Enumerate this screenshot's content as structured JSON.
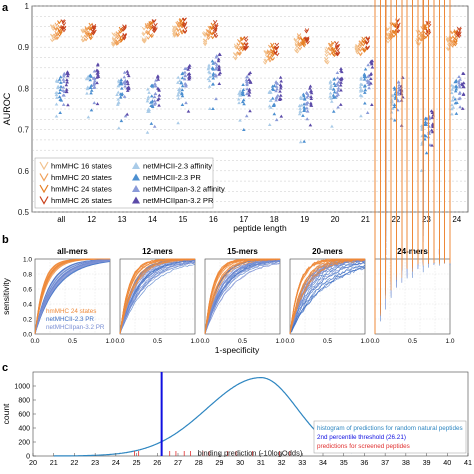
{
  "panel_letters": [
    "a",
    "b",
    "c"
  ],
  "colors": {
    "hm16": "#f2c28e",
    "hm20": "#f0a059",
    "hm24": "#e67e22",
    "hm26": "#c8411b",
    "net23aff": "#a9cbe8",
    "net23pr": "#4c8fd0",
    "netpan_aff": "#8a9ad8",
    "netpan_pr": "#5b4aa8",
    "curve_hm": "#ee8a3a",
    "curve_net23": "#3d6fc4",
    "curve_netpan": "#7a8fd4",
    "hist": "#2e86c1",
    "threshold": "#1010e0",
    "screened": "#e03030"
  },
  "chart_data": [
    {
      "type": "scatter",
      "panel": "a",
      "xlabel": "peptide length",
      "ylabel": "AUROC",
      "categories": [
        "all",
        "12",
        "13",
        "14",
        "15",
        "16",
        "17",
        "18",
        "19",
        "20",
        "21",
        "22",
        "23",
        "24"
      ],
      "ylim": [
        0.5,
        1.0
      ],
      "yticks": [
        "0.5",
        "0.6",
        "0.7",
        "0.8",
        "0.9",
        "1"
      ],
      "grid": true,
      "legend_position": "bottom-left",
      "series": [
        {
          "name": "hmMHC 16 states",
          "color_key": "hm16",
          "marker": "vee",
          "centers": [
            0.935,
            0.925,
            0.915,
            0.93,
            0.935,
            0.925,
            0.89,
            0.875,
            0.905,
            0.88,
            0.89,
            0.93,
            0.925,
            0.91
          ],
          "spread": 0.03
        },
        {
          "name": "hmMHC 20 states",
          "color_key": "hm20",
          "marker": "vee",
          "centers": [
            0.94,
            0.935,
            0.925,
            0.94,
            0.945,
            0.935,
            0.9,
            0.885,
            0.915,
            0.89,
            0.9,
            0.94,
            0.935,
            0.92
          ],
          "spread": 0.03
        },
        {
          "name": "hmMHC 24 states",
          "color_key": "hm24",
          "marker": "vee",
          "centers": [
            0.945,
            0.94,
            0.93,
            0.945,
            0.95,
            0.94,
            0.905,
            0.89,
            0.92,
            0.895,
            0.905,
            0.945,
            0.94,
            0.925
          ],
          "spread": 0.03
        },
        {
          "name": "hmMHC 26 states",
          "color_key": "hm26",
          "marker": "vee",
          "centers": [
            0.95,
            0.945,
            0.935,
            0.95,
            0.955,
            0.945,
            0.91,
            0.895,
            0.925,
            0.9,
            0.91,
            0.95,
            0.945,
            0.93
          ],
          "spread": 0.03
        },
        {
          "name": "netMHCII-2.3 affinity",
          "color_key": "net23aff",
          "marker": "tri",
          "centers": [
            0.79,
            0.8,
            0.79,
            0.77,
            0.8,
            0.83,
            0.78,
            0.77,
            0.75,
            0.79,
            0.81,
            0.77,
            0.69,
            0.78
          ],
          "spread": 0.05
        },
        {
          "name": "netMHCII-2.3 PR",
          "color_key": "net23pr",
          "marker": "tri",
          "centers": [
            0.8,
            0.81,
            0.8,
            0.78,
            0.81,
            0.84,
            0.79,
            0.78,
            0.76,
            0.8,
            0.82,
            0.78,
            0.7,
            0.79
          ],
          "spread": 0.05
        },
        {
          "name": "netMHCIIpan-3.2 affinity",
          "color_key": "netpan_aff",
          "marker": "tri",
          "centers": [
            0.81,
            0.82,
            0.81,
            0.79,
            0.82,
            0.85,
            0.8,
            0.79,
            0.77,
            0.81,
            0.83,
            0.79,
            0.71,
            0.8
          ],
          "spread": 0.05
        },
        {
          "name": "netMHCIIpan-3.2 PR",
          "color_key": "netpan_pr",
          "marker": "tri",
          "centers": [
            0.82,
            0.83,
            0.82,
            0.8,
            0.83,
            0.86,
            0.81,
            0.8,
            0.78,
            0.82,
            0.84,
            0.8,
            0.72,
            0.81
          ],
          "spread": 0.05
        }
      ]
    },
    {
      "type": "line",
      "panel": "b",
      "xlabel": "1-specificity",
      "ylabel": "sensitivity",
      "xticks": [
        "0.0",
        "0.5",
        "1.0"
      ],
      "yticks": [
        "0.0",
        "0.2",
        "0.4",
        "0.6",
        "0.8",
        "1.0"
      ],
      "xlim": [
        0,
        1
      ],
      "ylim": [
        0,
        1
      ],
      "subplots": [
        {
          "title": "all-mers",
          "k_hm": [
            6.5,
            9.5
          ],
          "k_net": [
            3.2,
            5.5
          ],
          "noise": 0
        },
        {
          "title": "12-mers",
          "k_hm": [
            4.5,
            9
          ],
          "k_net": [
            2.5,
            6
          ],
          "noise": 0.02
        },
        {
          "title": "15-mers",
          "k_hm": [
            5,
            10
          ],
          "k_net": [
            2.5,
            6
          ],
          "noise": 0.02
        },
        {
          "title": "20-mers",
          "k_hm": [
            4,
            9
          ],
          "k_net": [
            2,
            5.5
          ],
          "noise": 0.04
        },
        {
          "title": "24-mers",
          "k_hm": [
            4,
            12
          ],
          "k_net": [
            3,
            10
          ],
          "noise": 0.12
        }
      ],
      "legend": [
        {
          "name": "hmMHC 24 states",
          "color_key": "curve_hm"
        },
        {
          "name": "netMHCII-2.3 PR",
          "color_key": "curve_net23"
        },
        {
          "name": "netMHCIIpan-3.2 PR",
          "color_key": "curve_netpan"
        }
      ]
    },
    {
      "type": "area",
      "panel": "c",
      "xlabel": "binding prediction (-10logOdds)",
      "ylabel": "count",
      "xlim": [
        20,
        41
      ],
      "xticks": [
        "20",
        "21",
        "22",
        "23",
        "24",
        "25",
        "26",
        "27",
        "28",
        "29",
        "30",
        "31",
        "32",
        "33",
        "34",
        "35",
        "36",
        "37",
        "38",
        "39",
        "40",
        "41"
      ],
      "ylim": [
        0,
        1200
      ],
      "yticks": [
        "0",
        "200",
        "400",
        "600",
        "800",
        "1000"
      ],
      "histogram": {
        "peak_x": 31.0,
        "peak_count": 1120,
        "sd_left": 2.6,
        "sd_right": 1.75,
        "start_x": 21.0,
        "end_x": 35.4
      },
      "threshold_x": 26.21,
      "screened_peptides_x": [
        24.9,
        25.1,
        26.6,
        26.9,
        27.3,
        27.6,
        28.2,
        28.5,
        29.4,
        29.8,
        30.6,
        31.9,
        32.4
      ],
      "legend": [
        {
          "name": "histogram of predictions for random natural peptides",
          "color_key": "hist"
        },
        {
          "name": "2nd percentile threshold (26.21)",
          "color_key": "threshold"
        },
        {
          "name": "predictions for screened peptides",
          "color_key": "screened"
        }
      ]
    }
  ]
}
